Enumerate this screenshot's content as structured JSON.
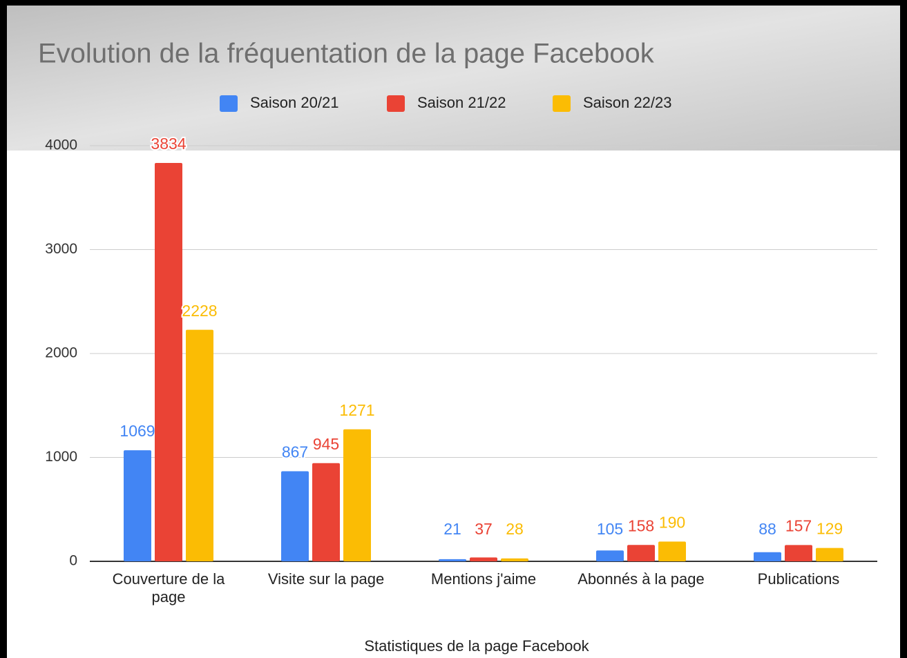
{
  "chart_data": {
    "type": "bar",
    "title": "Evolution de la fréquentation de la page Facebook",
    "x_label": "Statistiques de la page Facebook",
    "categories": [
      "Couverture de la page",
      "Visite sur la page",
      "Mentions j'aime",
      "Abonnés à la page",
      "Publications"
    ],
    "series": [
      {
        "name": "Saison 20/21",
        "color": "#4285f4",
        "values": [
          1069,
          867,
          21,
          105,
          88
        ]
      },
      {
        "name": "Saison 21/22",
        "color": "#ea4335",
        "values": [
          3834,
          945,
          37,
          158,
          157
        ]
      },
      {
        "name": "Saison 22/23",
        "color": "#fbbc04",
        "values": [
          2228,
          1271,
          28,
          190,
          129
        ]
      }
    ],
    "ylim": [
      0,
      4000
    ],
    "yticks": [
      0,
      1000,
      2000,
      3000,
      4000
    ],
    "grid": true
  }
}
